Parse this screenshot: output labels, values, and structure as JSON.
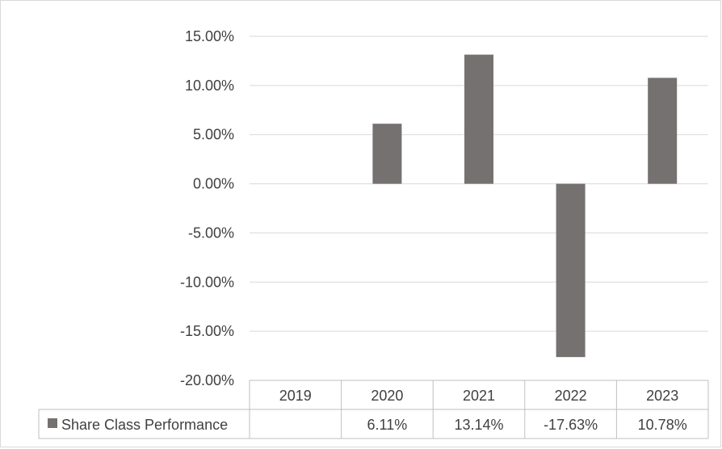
{
  "chart_data": {
    "type": "bar",
    "categories": [
      "2019",
      "2020",
      "2021",
      "2022",
      "2023"
    ],
    "series": [
      {
        "name": "Share Class Performance",
        "values": [
          null,
          6.11,
          13.14,
          -17.63,
          10.78
        ],
        "labels": [
          "",
          "6.11%",
          "13.14%",
          "-17.63%",
          "10.78%"
        ],
        "color": "#767171"
      }
    ],
    "ylim": [
      -20,
      15
    ],
    "yticks": [
      15,
      10,
      5,
      0,
      -5,
      -10,
      -15,
      -20
    ],
    "ytick_labels": [
      "15.00%",
      "10.00%",
      "5.00%",
      "0.00%",
      "-5.00%",
      "-10.00%",
      "-15.00%",
      "-20.00%"
    ],
    "grid": true,
    "legend": "data-table",
    "gridline_color": "#d9d9d9"
  }
}
